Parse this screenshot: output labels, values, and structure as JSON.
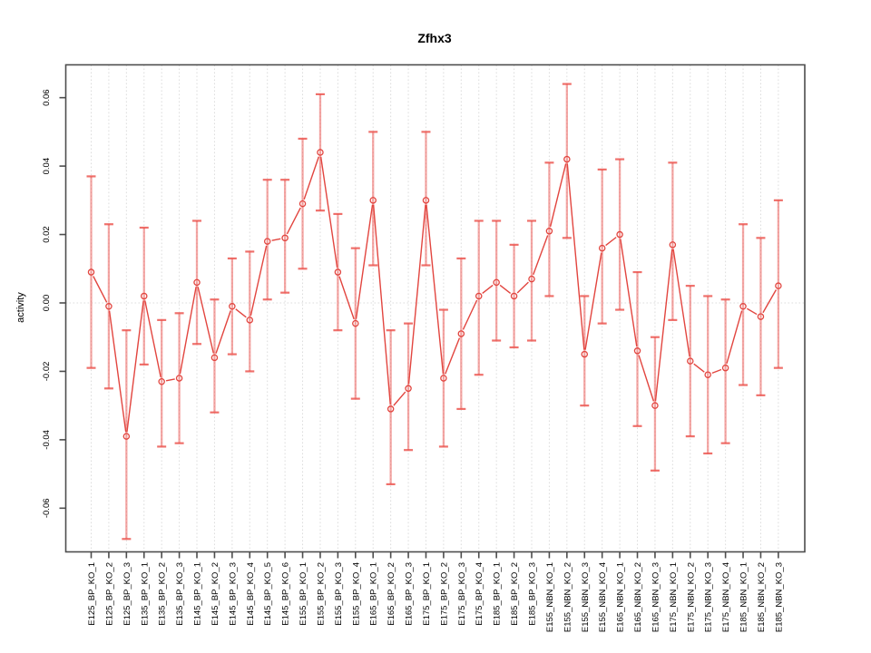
{
  "chart_data": {
    "type": "line",
    "subtype": "points-with-error-bars",
    "title": "Zfhx3",
    "xlabel": "",
    "ylabel": "activity",
    "ylim": [
      -0.075,
      0.068
    ],
    "yticks": [
      -0.06,
      -0.04,
      -0.02,
      0.0,
      0.02,
      0.04,
      0.06
    ],
    "ytick_labels": [
      "-0.06",
      "-0.04",
      "-0.02",
      "0.00",
      "0.02",
      "0.04",
      "0.06"
    ],
    "grid": "vertical dotted gridline at every category plus dotted horizontal line at y=0",
    "legend_position": "none",
    "categories": [
      "E125_BP_KO_1",
      "E125_BP_KO_2",
      "E125_BP_KO_3",
      "E135_BP_KO_1",
      "E135_BP_KO_2",
      "E135_BP_KO_3",
      "E145_BP_KO_1",
      "E145_BP_KO_2",
      "E145_BP_KO_3",
      "E145_BP_KO_4",
      "E145_BP_KO_5",
      "E145_BP_KO_6",
      "E155_BP_KO_1",
      "E155_BP_KO_2",
      "E155_BP_KO_3",
      "E155_BP_KO_4",
      "E165_BP_KO_1",
      "E165_BP_KO_2",
      "E165_BP_KO_3",
      "E175_BP_KO_1",
      "E175_BP_KO_2",
      "E175_BP_KO_3",
      "E175_BP_KO_4",
      "E185_BP_KO_1",
      "E185_BP_KO_2",
      "E185_BP_KO_3",
      "E155_NBN_KO_1",
      "E155_NBN_KO_2",
      "E155_NBN_KO_3",
      "E155_NBN_KO_4",
      "E165_NBN_KO_1",
      "E165_NBN_KO_2",
      "E165_NBN_KO_3",
      "E175_NBN_KO_1",
      "E175_NBN_KO_2",
      "E175_NBN_KO_3",
      "E175_NBN_KO_4",
      "E185_NBN_KO_1",
      "E185_NBN_KO_2",
      "E185_NBN_KO_3"
    ],
    "series": [
      {
        "name": "activity",
        "values": [
          0.009,
          -0.001,
          -0.039,
          0.002,
          -0.023,
          -0.022,
          0.006,
          -0.016,
          -0.001,
          -0.005,
          0.018,
          0.019,
          0.029,
          0.044,
          0.009,
          -0.006,
          0.03,
          -0.031,
          -0.025,
          0.03,
          -0.022,
          -0.009,
          0.002,
          0.006,
          0.002,
          0.007,
          0.021,
          0.042,
          -0.015,
          0.016,
          0.02,
          -0.014,
          -0.03,
          0.017,
          -0.017,
          -0.021,
          -0.019,
          -0.001,
          -0.004,
          0.005
        ],
        "upper": [
          0.037,
          0.023,
          -0.008,
          0.022,
          -0.005,
          -0.003,
          0.024,
          0.001,
          0.013,
          0.015,
          0.036,
          0.036,
          0.048,
          0.061,
          0.026,
          0.016,
          0.05,
          -0.008,
          -0.006,
          0.05,
          -0.002,
          0.013,
          0.024,
          0.024,
          0.017,
          0.024,
          0.041,
          0.064,
          0.002,
          0.039,
          0.042,
          0.009,
          -0.01,
          0.041,
          0.005,
          0.002,
          0.001,
          0.023,
          0.019,
          0.03
        ],
        "lower": [
          -0.019,
          -0.025,
          -0.069,
          -0.018,
          -0.042,
          -0.041,
          -0.012,
          -0.032,
          -0.015,
          -0.02,
          0.001,
          0.003,
          0.01,
          0.027,
          -0.008,
          -0.028,
          0.011,
          -0.053,
          -0.043,
          0.011,
          -0.042,
          -0.031,
          -0.021,
          -0.011,
          -0.013,
          -0.011,
          0.002,
          0.019,
          -0.03,
          -0.006,
          -0.002,
          -0.036,
          -0.049,
          -0.005,
          -0.039,
          -0.044,
          -0.041,
          -0.024,
          -0.027,
          -0.019
        ]
      }
    ],
    "colors": {
      "series": "#e2453f",
      "error_stem": "rgba(235,80,75,0.5)",
      "error_cap": "rgba(235,80,75,0.82)",
      "gridline": "#dcdcdc",
      "box": "#4d4d4d",
      "text": "#000000",
      "background": "#ffffff"
    }
  }
}
